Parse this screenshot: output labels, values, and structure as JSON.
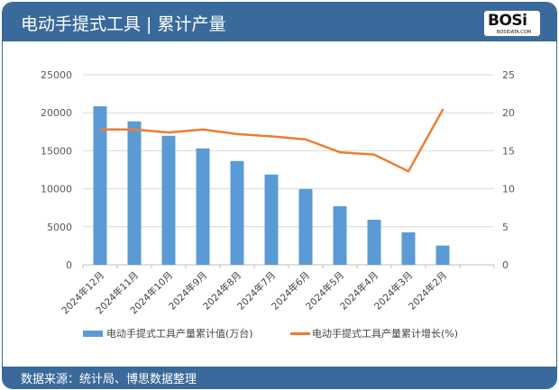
{
  "header": {
    "title": "电动手提式工具 | 累计产量",
    "logo": "BOSi",
    "logo_site": "BOSIDATA.COM"
  },
  "footer": {
    "source": "数据来源：统计局、博思数据整理"
  },
  "colors": {
    "bar": "#5b9bd5",
    "line": "#ed7d31",
    "header": "#3a6a9b"
  },
  "chart_data": {
    "type": "bar+line",
    "categories": [
      "2024年12月",
      "2024年11月",
      "2024年10月",
      "2024年9月",
      "2024年8月",
      "2024年7月",
      "2024年6月",
      "2024年5月",
      "2024年4月",
      "2024年3月",
      "2024年2月"
    ],
    "series": [
      {
        "name": "电动手提式工具产量累计值(万台)",
        "type": "bar",
        "axis": "left",
        "values": [
          20850,
          18870,
          16970,
          15310,
          13650,
          11870,
          9970,
          7710,
          5930,
          4270,
          2530
        ]
      },
      {
        "name": "电动手提式工具产量累计增长(%)",
        "type": "line",
        "axis": "right",
        "values": [
          17.8,
          17.8,
          17.4,
          17.8,
          17.2,
          16.9,
          16.5,
          14.8,
          14.5,
          12.3,
          20.4
        ]
      }
    ],
    "ylim_left": [
      0,
      25000
    ],
    "yticks_left": [
      "0",
      "5000",
      "10000",
      "15000",
      "20000",
      "25000"
    ],
    "ylim_right": [
      0,
      25
    ],
    "yticks_right": [
      "0",
      "5",
      "10",
      "15",
      "20",
      "25"
    ],
    "grid": true,
    "legend": "bottom"
  }
}
